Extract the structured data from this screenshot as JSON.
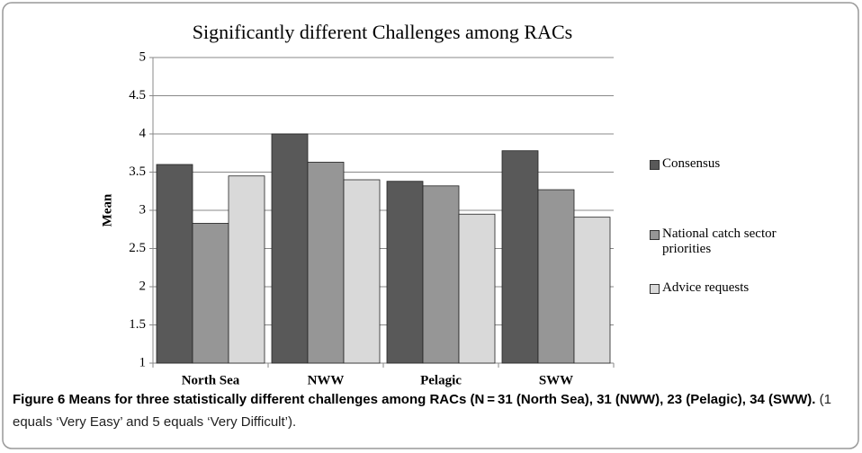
{
  "chart_data": {
    "type": "bar",
    "title": "Significantly different Challenges among RACs",
    "ylabel": "Mean",
    "categories": [
      "North Sea",
      "NWW",
      "Pelagic",
      "SWW"
    ],
    "series": [
      {
        "name": "Consensus",
        "color": "#595959",
        "values": [
          3.6,
          4.0,
          3.38,
          3.78
        ]
      },
      {
        "name": "National catch sector priorities",
        "color": "#969696",
        "values": [
          2.83,
          3.63,
          3.32,
          3.27
        ]
      },
      {
        "name": "Advice requests",
        "color": "#d9d9d9",
        "values": [
          3.45,
          3.4,
          2.95,
          2.91
        ]
      }
    ],
    "ylim": [
      1,
      5
    ],
    "yticks": [
      1,
      1.5,
      2,
      2.5,
      3,
      3.5,
      4,
      4.5,
      5
    ],
    "grid": true,
    "legend": "right"
  },
  "figure_caption": {
    "title": "Figure 6 Means for three statistically different challenges among RACs (N = 31 (North Sea), 31 (NWW), 23 (Pelagic), 34 (SWW).",
    "note": "(1 equals ‘Very Easy’ and 5 equals ‘Very Difficult’)."
  }
}
